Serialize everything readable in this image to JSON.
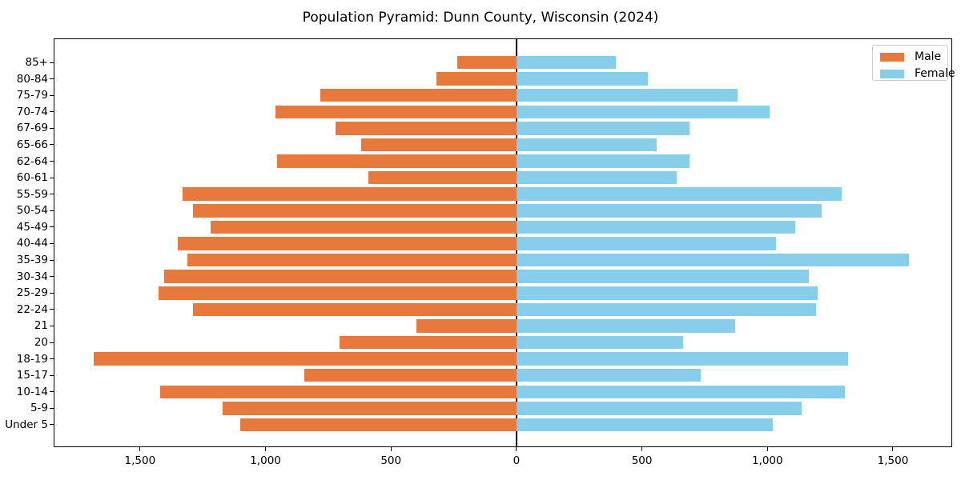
{
  "figure": {
    "title": "Population Pyramid: Dunn County, Wisconsin (2024)"
  },
  "chart_data": {
    "type": "bar",
    "subtype": "population-pyramid",
    "orientation": "horizontal",
    "title": "Population Pyramid: Dunn County, Wisconsin (2024)",
    "xlabel": "",
    "ylabel": "",
    "categories_top_to_bottom": [
      "85+",
      "80-84",
      "75-79",
      "70-74",
      "67-69",
      "65-66",
      "62-64",
      "60-61",
      "55-59",
      "50-54",
      "45-49",
      "40-44",
      "35-39",
      "30-34",
      "25-29",
      "22-24",
      "21",
      "20",
      "18-19",
      "15-17",
      "10-14",
      "5-9",
      "Under 5"
    ],
    "series": [
      {
        "name": "Male",
        "side": "left",
        "color": "#e8793c",
        "values": [
          235,
          320,
          780,
          960,
          720,
          620,
          955,
          590,
          1330,
          1290,
          1220,
          1350,
          1310,
          1405,
          1425,
          1290,
          400,
          705,
          1685,
          845,
          1420,
          1170,
          1100
        ]
      },
      {
        "name": "Female",
        "side": "right",
        "color": "#87ceeb",
        "values": [
          395,
          525,
          880,
          1010,
          690,
          560,
          690,
          640,
          1295,
          1215,
          1110,
          1035,
          1565,
          1165,
          1200,
          1195,
          870,
          665,
          1320,
          735,
          1310,
          1135,
          1020
        ]
      }
    ],
    "x_ticks": [
      -1500,
      -1000,
      -500,
      0,
      500,
      1000,
      1500
    ],
    "x_tick_labels": [
      "1,500",
      "1,000",
      "500",
      "0",
      "500",
      "1,000",
      "1,500"
    ],
    "xlim": [
      -1841,
      1733
    ],
    "grid": false,
    "zero_axis_line": true,
    "legend": {
      "position": "upper right",
      "entries": [
        "Male",
        "Female"
      ]
    }
  }
}
